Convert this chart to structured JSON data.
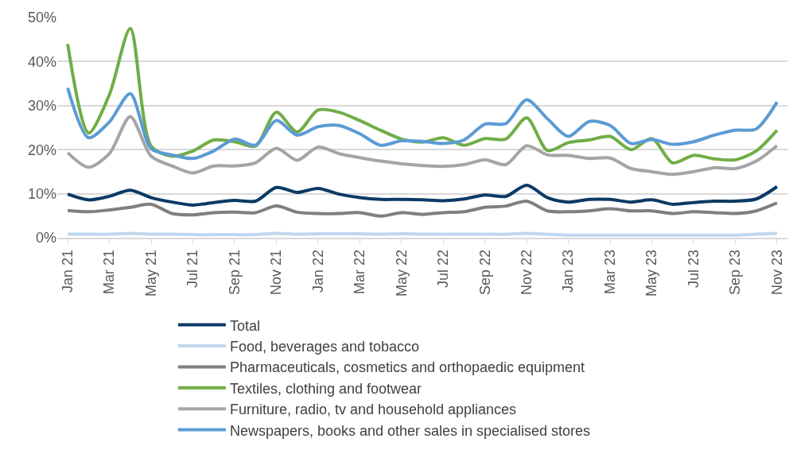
{
  "chart_data": {
    "type": "line",
    "categories": [
      "Jan 21",
      null,
      "Mar 21",
      null,
      "May 21",
      null,
      "Jul 21",
      null,
      "Sep 21",
      null,
      "Nov 21",
      null,
      "Jan 22",
      null,
      "Mar 22",
      null,
      "May 22",
      null,
      "Jul 22",
      null,
      "Sep 22",
      null,
      "Nov 22",
      null,
      "Jan 23",
      null,
      "Mar 23",
      null,
      "May 23",
      null,
      "Jul 23",
      null,
      "Sep 23",
      null,
      "Nov 23"
    ],
    "series": [
      {
        "name": "Total",
        "color": "#0b3a64",
        "values": [
          9.9,
          8.6,
          9.4,
          10.8,
          9.1,
          8.1,
          7.4,
          8,
          8.5,
          8.3,
          11.4,
          10.3,
          11.2,
          9.9,
          9.1,
          8.7,
          8.7,
          8.6,
          8.4,
          8.8,
          9.7,
          9.4,
          11.9,
          9.1,
          8.1,
          8.7,
          8.7,
          8.1,
          8.6,
          7.6,
          8,
          8.3,
          8.3,
          8.8,
          11.6
        ]
      },
      {
        "name": "Food, beverages and tobacco",
        "color": "#bdd7ee",
        "values": [
          0.8,
          0.8,
          0.8,
          1,
          0.8,
          0.8,
          0.7,
          0.7,
          0.7,
          0.7,
          1,
          0.8,
          0.9,
          0.9,
          0.9,
          0.8,
          0.9,
          0.8,
          0.8,
          0.8,
          0.8,
          0.8,
          1,
          0.8,
          0.6,
          0.6,
          0.6,
          0.6,
          0.6,
          0.6,
          0.6,
          0.6,
          0.6,
          0.8,
          1
        ]
      },
      {
        "name": "Pharmaceuticals, cosmetics and orthopaedic equipment",
        "color": "#7f7f7f",
        "values": [
          6.2,
          5.9,
          6.3,
          6.9,
          7.6,
          5.5,
          5.2,
          5.7,
          5.8,
          5.7,
          7.2,
          5.8,
          5.5,
          5.5,
          5.7,
          4.9,
          5.7,
          5.3,
          5.7,
          5.9,
          6.9,
          7.2,
          8.3,
          6.1,
          5.9,
          6.1,
          6.6,
          6.1,
          6.1,
          5.5,
          5.9,
          5.7,
          5.5,
          6.1,
          7.9
        ]
      },
      {
        "name": "Textiles, clothing and footwear",
        "color": "#70ad47",
        "values": [
          44,
          23.8,
          32.5,
          47.5,
          20.8,
          18.5,
          19.7,
          22.2,
          21.8,
          20.8,
          28.5,
          24,
          29,
          28.5,
          26.6,
          24.4,
          22.4,
          21.7,
          22.7,
          21,
          22.5,
          22.4,
          27.2,
          19.8,
          21.6,
          22.2,
          23,
          20,
          22.5,
          17,
          18.7,
          17.9,
          17.7,
          19.7,
          24.4
        ]
      },
      {
        "name": "Furniture, radio, tv and household appliances",
        "color": "#a5a5a5",
        "values": [
          19.3,
          16,
          19.1,
          27.5,
          18.5,
          16.3,
          14.7,
          16.3,
          16.3,
          17,
          20.3,
          17.6,
          20.6,
          19.1,
          18.2,
          17.4,
          16.8,
          16.4,
          16.2,
          16.6,
          17.7,
          16.6,
          20.9,
          18.8,
          18.7,
          18,
          18.1,
          15.7,
          15,
          14.4,
          15,
          15.9,
          15.7,
          17.4,
          20.9
        ]
      },
      {
        "name": "Newspapers, books and other sales in specialised stores",
        "color": "#5b9bd5",
        "values": [
          34,
          22.7,
          26.3,
          32.7,
          20.2,
          18.8,
          18,
          19.7,
          22.4,
          21,
          26.6,
          23.3,
          25.2,
          25.5,
          23.6,
          21,
          22,
          21.9,
          21.4,
          22.2,
          25.8,
          25.9,
          31.3,
          27,
          23,
          26.4,
          25.5,
          21.4,
          22.3,
          21.2,
          21.8,
          23.3,
          24.4,
          24.7,
          30.8
        ]
      }
    ],
    "ylim": [
      0,
      50
    ],
    "yticks": [
      {
        "value": 0,
        "label": "0%"
      },
      {
        "value": 10,
        "label": "10%"
      },
      {
        "value": 20,
        "label": "20%"
      },
      {
        "value": 30,
        "label": "30%"
      },
      {
        "value": 40,
        "label": "40%"
      },
      {
        "value": 50,
        "label": "50%"
      }
    ],
    "grid": "y",
    "legend": "bottom",
    "marker": "none",
    "line_style": "solid"
  }
}
